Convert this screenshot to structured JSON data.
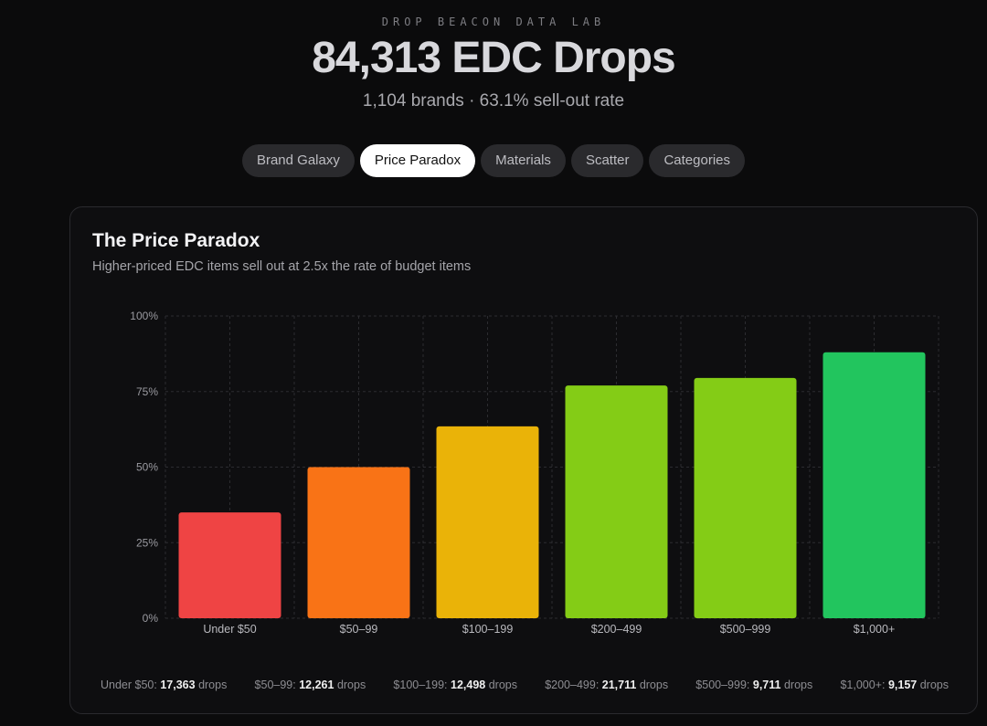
{
  "header": {
    "kicker": "DROP BEACON DATA LAB",
    "title": "84,313 EDC Drops",
    "subtitle": "1,104 brands · 63.1% sell-out rate"
  },
  "tabs": [
    {
      "label": "Brand Galaxy",
      "active": false
    },
    {
      "label": "Price Paradox",
      "active": true
    },
    {
      "label": "Materials",
      "active": false
    },
    {
      "label": "Scatter",
      "active": false
    },
    {
      "label": "Categories",
      "active": false
    }
  ],
  "card": {
    "title": "The Price Paradox",
    "subtitle": "Higher-priced EDC items sell out at 2.5x the rate of budget items"
  },
  "chart_data": {
    "type": "bar",
    "title": "The Price Paradox",
    "categories": [
      "Under $50",
      "$50–99",
      "$100–199",
      "$200–499",
      "$500–999",
      "$1,000+"
    ],
    "values": [
      35,
      50,
      63.5,
      77,
      79.5,
      88
    ],
    "colors": [
      "#ef4444",
      "#f97316",
      "#eab308",
      "#84cc16",
      "#84cc16",
      "#22c55e"
    ],
    "ylim": [
      0,
      100
    ],
    "yticks": [
      0,
      25,
      50,
      75,
      100
    ],
    "ytick_labels": [
      "0%",
      "25%",
      "50%",
      "75%",
      "100%"
    ],
    "grid": true,
    "xlabel": "",
    "ylabel": ""
  },
  "footer": {
    "suffix": "drops",
    "items": [
      {
        "label": "Under $50:",
        "count": "17,363"
      },
      {
        "label": "$50–99:",
        "count": "12,261"
      },
      {
        "label": "$100–199:",
        "count": "12,498"
      },
      {
        "label": "$200–499:",
        "count": "21,711"
      },
      {
        "label": "$500–999:",
        "count": "9,711"
      },
      {
        "label": "$1,000+:",
        "count": "9,157"
      }
    ]
  }
}
